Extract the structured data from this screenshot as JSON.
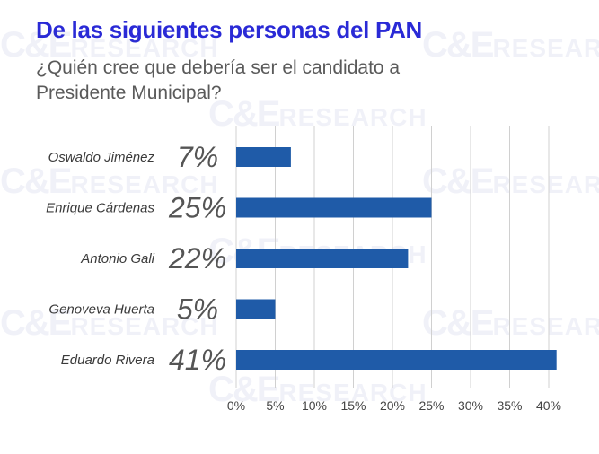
{
  "header": {
    "title": "De las siguientes personas del PAN",
    "subtitle": "¿Quién cree que debería ser el candidato a Presidente Municipal?"
  },
  "watermark": {
    "brand": "C&E",
    "word": "RESEARCH"
  },
  "colors": {
    "bar": "#1f5ba8",
    "grid": "#d0d0d0",
    "title": "#2a2ad6"
  },
  "chart_data": {
    "type": "bar",
    "orientation": "horizontal",
    "categories": [
      "Oswaldo Jiménez",
      "Enrique Cárdenas",
      "Antonio Gali",
      "Genoveva Huerta",
      "Eduardo Rivera"
    ],
    "values": [
      7,
      25,
      22,
      5,
      41
    ],
    "data_labels": [
      "7%",
      "25%",
      "22%",
      "5%",
      "41%"
    ],
    "xlim": [
      0,
      42
    ],
    "ticks": [
      0,
      5,
      10,
      15,
      20,
      25,
      30,
      35,
      40
    ],
    "tick_labels": [
      "0%",
      "5%",
      "10%",
      "15%",
      "20%",
      "25%",
      "30%",
      "35%",
      "40%"
    ],
    "grid": true,
    "legend": "none"
  }
}
